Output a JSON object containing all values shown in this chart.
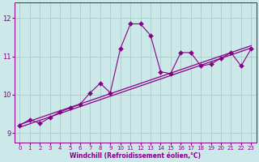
{
  "title": "",
  "xlabel": "Windchill (Refroidissement éolien,°C)",
  "bg_color": "#cce8e8",
  "grid_color": "#aacccc",
  "line_color": "#880088",
  "xlim": [
    -0.5,
    23.5
  ],
  "ylim": [
    8.75,
    12.4
  ],
  "yticks": [
    9,
    10,
    11,
    12
  ],
  "xticks": [
    0,
    1,
    2,
    3,
    4,
    5,
    6,
    7,
    8,
    9,
    10,
    11,
    12,
    13,
    14,
    15,
    16,
    17,
    18,
    19,
    20,
    21,
    22,
    23
  ],
  "scatter_x": [
    0,
    1,
    2,
    3,
    4,
    5,
    6,
    7,
    8,
    9,
    10,
    11,
    12,
    13,
    14,
    15,
    16,
    17,
    18,
    19,
    20,
    21,
    22,
    23
  ],
  "scatter_y": [
    9.2,
    9.35,
    9.25,
    9.4,
    9.55,
    9.65,
    9.75,
    10.05,
    10.3,
    10.05,
    11.2,
    11.85,
    11.85,
    11.55,
    10.6,
    10.55,
    11.1,
    11.1,
    10.75,
    10.8,
    10.95,
    11.1,
    10.75,
    11.2
  ],
  "line1_x": [
    0,
    23
  ],
  "line1_y": [
    9.15,
    11.22
  ],
  "line2_x": [
    0,
    23
  ],
  "line2_y": [
    9.22,
    11.28
  ],
  "marker_size": 3,
  "linewidth": 0.8,
  "trend_linewidth": 0.9
}
